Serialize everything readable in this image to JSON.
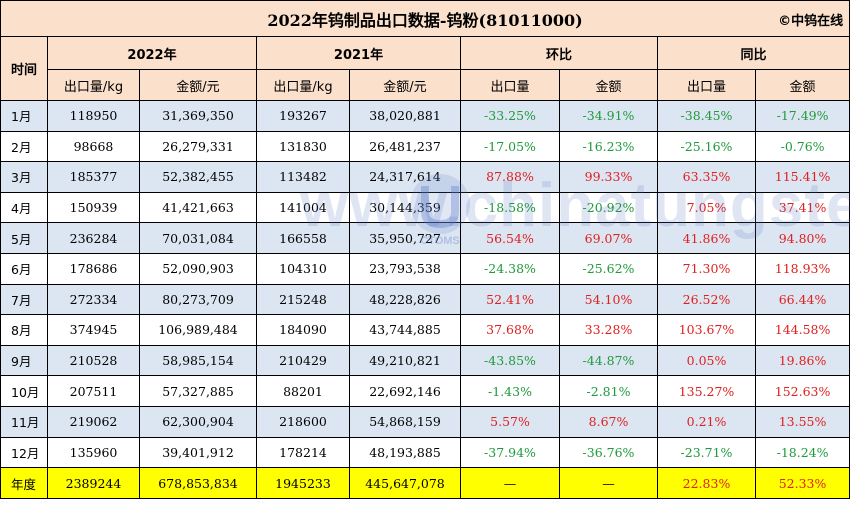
{
  "title": "2022年钨制品出口数据-钨粉(81011000)",
  "copyright": "©中钨在线",
  "headers": {
    "time": "时间",
    "y2022": "2022年",
    "y2021": "2021年",
    "mom": "环比",
    "yoy": "同比",
    "export_qty": "出口量/kg",
    "amount_yuan": "金额/元",
    "qty": "出口量",
    "amount": "金额"
  },
  "rows": [
    {
      "month": "1月",
      "q2022": "118950",
      "a2022": "31,369,350",
      "q2021": "193267",
      "a2021": "38,020,881",
      "mom_q": "-33.25%",
      "mom_a": "-34.91%",
      "yoy_q": "-38.45%",
      "yoy_a": "-17.49%"
    },
    {
      "month": "2月",
      "q2022": "98668",
      "a2022": "26,279,331",
      "q2021": "131830",
      "a2021": "26,481,237",
      "mom_q": "-17.05%",
      "mom_a": "-16.23%",
      "yoy_q": "-25.16%",
      "yoy_a": "-0.76%"
    },
    {
      "month": "3月",
      "q2022": "185377",
      "a2022": "52,382,455",
      "q2021": "113482",
      "a2021": "24,317,614",
      "mom_q": "87.88%",
      "mom_a": "99.33%",
      "yoy_q": "63.35%",
      "yoy_a": "115.41%"
    },
    {
      "month": "4月",
      "q2022": "150939",
      "a2022": "41,421,663",
      "q2021": "141004",
      "a2021": "30,144,359",
      "mom_q": "-18.58%",
      "mom_a": "-20.92%",
      "yoy_q": "7.05%",
      "yoy_a": "37.41%"
    },
    {
      "month": "5月",
      "q2022": "236284",
      "a2022": "70,031,084",
      "q2021": "166558",
      "a2021": "35,950,727",
      "mom_q": "56.54%",
      "mom_a": "69.07%",
      "yoy_q": "41.86%",
      "yoy_a": "94.80%"
    },
    {
      "month": "6月",
      "q2022": "178686",
      "a2022": "52,090,903",
      "q2021": "104310",
      "a2021": "23,793,538",
      "mom_q": "-24.38%",
      "mom_a": "-25.62%",
      "yoy_q": "71.30%",
      "yoy_a": "118.93%"
    },
    {
      "month": "7月",
      "q2022": "272334",
      "a2022": "80,273,709",
      "q2021": "215248",
      "a2021": "48,228,826",
      "mom_q": "52.41%",
      "mom_a": "54.10%",
      "yoy_q": "26.52%",
      "yoy_a": "66.44%"
    },
    {
      "month": "8月",
      "q2022": "374945",
      "a2022": "106,989,484",
      "q2021": "184090",
      "a2021": "43,744,885",
      "mom_q": "37.68%",
      "mom_a": "33.28%",
      "yoy_q": "103.67%",
      "yoy_a": "144.58%"
    },
    {
      "month": "9月",
      "q2022": "210528",
      "a2022": "58,985,154",
      "q2021": "210429",
      "a2021": "49,210,821",
      "mom_q": "-43.85%",
      "mom_a": "-44.87%",
      "yoy_q": "0.05%",
      "yoy_a": "19.86%"
    },
    {
      "month": "10月",
      "q2022": "207511",
      "a2022": "57,327,885",
      "q2021": "88201",
      "a2021": "22,692,146",
      "mom_q": "-1.43%",
      "mom_a": "-2.81%",
      "yoy_q": "135.27%",
      "yoy_a": "152.63%"
    },
    {
      "month": "11月",
      "q2022": "219062",
      "a2022": "62,300,904",
      "q2021": "218600",
      "a2021": "54,868,159",
      "mom_q": "5.57%",
      "mom_a": "8.67%",
      "yoy_q": "0.21%",
      "yoy_a": "13.55%"
    },
    {
      "month": "12月",
      "q2022": "135960",
      "a2022": "39,401,912",
      "q2021": "178214",
      "a2021": "48,193,885",
      "mom_q": "-37.94%",
      "mom_a": "-36.76%",
      "yoy_q": "-23.71%",
      "yoy_a": "-18.24%"
    }
  ],
  "total": {
    "month": "年度",
    "q2022": "2389244",
    "a2022": "678,853,834",
    "q2021": "1945233",
    "a2021": "445,647,078",
    "mom_q": "—",
    "mom_a": "—",
    "yoy_q": "22.83%",
    "yoy_a": "52.33%"
  },
  "watermark": "www.chinatungsten.com",
  "logo_text": "CTOMS",
  "colors": {
    "positive": "#e02020",
    "negative": "#1f9a3c",
    "header_bg": "#fbe0cc",
    "stripe": "#dce6f2",
    "total_bg": "#ffff00"
  }
}
